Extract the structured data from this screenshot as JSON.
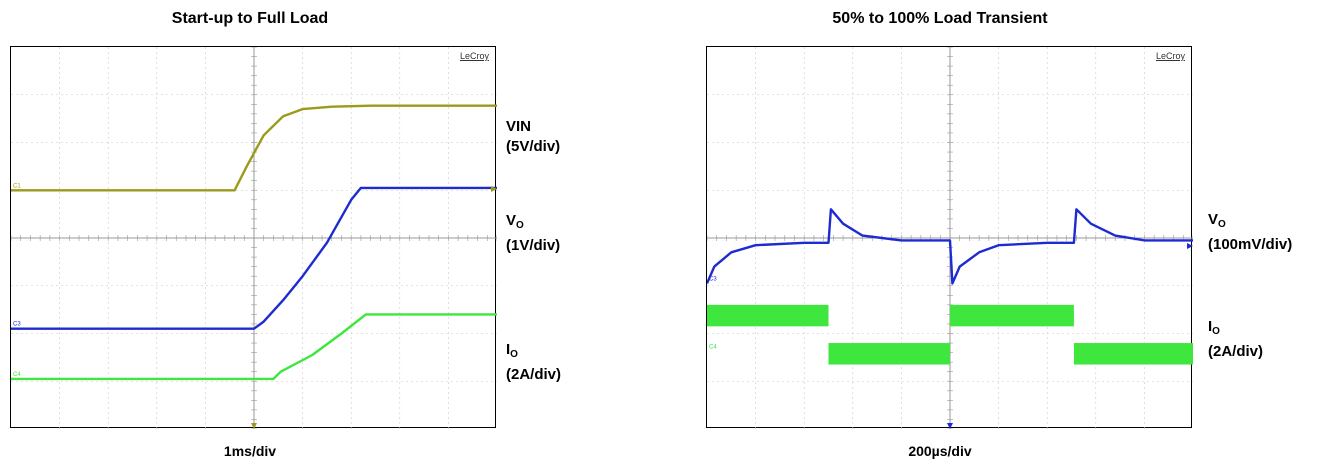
{
  "chart_data": [
    {
      "type": "line",
      "title": "Start-up to Full Load",
      "xlabel": "1ms/div",
      "watermark": "LeCroy",
      "grid": true,
      "divisions": {
        "x": 10,
        "y": 8
      },
      "series": [
        {
          "name": "VIN",
          "scale": "(5V/div)",
          "color": "#9a9b1a",
          "channel_marker": "C1",
          "points": [
            [
              0,
              3.0
            ],
            [
              4.6,
              3.0
            ],
            [
              4.85,
              2.5
            ],
            [
              5.2,
              1.85
            ],
            [
              5.6,
              1.45
            ],
            [
              6.0,
              1.3
            ],
            [
              6.6,
              1.25
            ],
            [
              7.4,
              1.23
            ],
            [
              10,
              1.23
            ]
          ]
        },
        {
          "name": "V",
          "subscript": "O",
          "scale": "(1V/div)",
          "color": "#1e2bd0",
          "channel_marker": "C3",
          "points": [
            [
              0,
              5.9
            ],
            [
              5.0,
              5.9
            ],
            [
              5.2,
              5.75
            ],
            [
              5.6,
              5.3
            ],
            [
              6.0,
              4.8
            ],
            [
              6.5,
              4.1
            ],
            [
              7.0,
              3.2
            ],
            [
              7.2,
              2.95
            ],
            [
              10,
              2.95
            ]
          ]
        },
        {
          "name": "I",
          "subscript": "O",
          "scale": "(2A/div)",
          "color": "#3ee63e",
          "channel_marker": "C4",
          "points": [
            [
              0,
              6.95
            ],
            [
              5.4,
              6.95
            ],
            [
              5.55,
              6.8
            ],
            [
              6.2,
              6.45
            ],
            [
              6.8,
              6.0
            ],
            [
              7.3,
              5.6
            ],
            [
              10,
              5.6
            ]
          ]
        }
      ]
    },
    {
      "type": "line",
      "title": "50% to 100% Load Transient",
      "xlabel": "200µs/div",
      "watermark": "LeCroy",
      "grid": true,
      "divisions": {
        "x": 10,
        "y": 8
      },
      "series": [
        {
          "name": "V",
          "subscript": "O",
          "scale": "(100mV/div)",
          "color": "#1e2bd0",
          "channel_marker": "C3",
          "points": [
            [
              0,
              4.95
            ],
            [
              0.15,
              4.6
            ],
            [
              0.5,
              4.3
            ],
            [
              1.0,
              4.15
            ],
            [
              2.0,
              4.1
            ],
            [
              2.5,
              4.1
            ],
            [
              2.55,
              3.4
            ],
            [
              2.8,
              3.7
            ],
            [
              3.2,
              3.95
            ],
            [
              4.0,
              4.05
            ],
            [
              5.0,
              4.05
            ],
            [
              5.05,
              4.95
            ],
            [
              5.2,
              4.6
            ],
            [
              5.6,
              4.3
            ],
            [
              6.0,
              4.15
            ],
            [
              7.0,
              4.1
            ],
            [
              7.55,
              4.1
            ],
            [
              7.6,
              3.4
            ],
            [
              7.9,
              3.7
            ],
            [
              8.4,
              3.95
            ],
            [
              9.0,
              4.05
            ],
            [
              10,
              4.05
            ]
          ]
        },
        {
          "name": "I",
          "subscript": "O",
          "scale": "(2A/div)",
          "color": "#3ee63e",
          "channel_marker": "C4",
          "ranges": [
            [
              0,
              2.5,
              5.4,
              5.85
            ],
            [
              2.5,
              5.0,
              6.2,
              6.65
            ],
            [
              5.0,
              7.55,
              5.4,
              5.85
            ],
            [
              7.55,
              10,
              6.2,
              6.65
            ]
          ]
        }
      ]
    }
  ]
}
